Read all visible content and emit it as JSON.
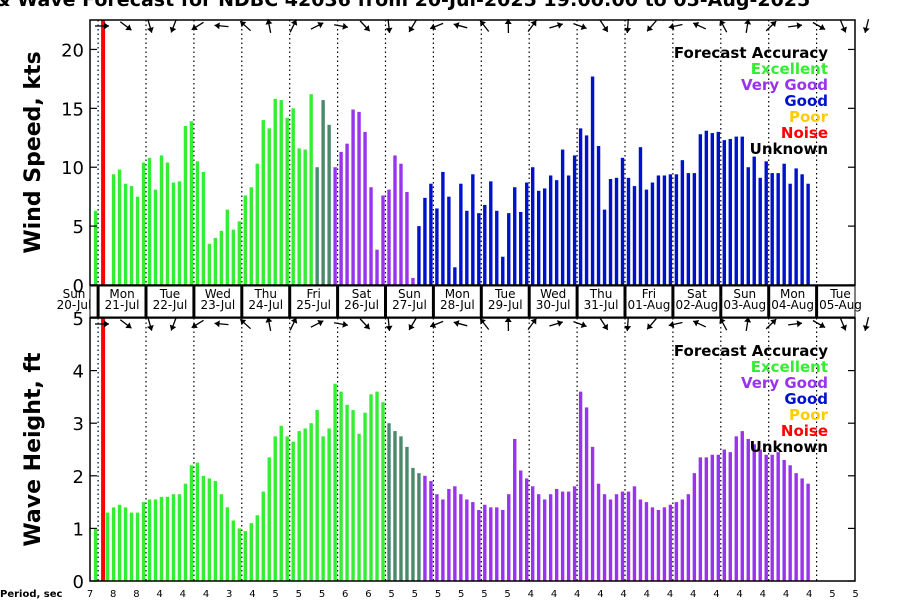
{
  "title": "& Wave Forecast for NDBC 42036 from 20-Jul-2025 19:00:00 to 05-Aug-2025",
  "colors": {
    "excellent": "#33ee33",
    "very_good": "#9933ee",
    "good": "#0011cc",
    "poor": "#ffcc00",
    "noise": "#ff0000",
    "unknown": "#000000",
    "transition": "#4a8a6a"
  },
  "legend": {
    "title": "Forecast Accuracy",
    "items": [
      {
        "label": "Excellent",
        "color": "#33ee33"
      },
      {
        "label": "Very Good",
        "color": "#9933ee"
      },
      {
        "label": "Good",
        "color": "#0011cc"
      },
      {
        "label": "Poor",
        "color": "#ffcc00"
      },
      {
        "label": "Noise",
        "color": "#ff0000"
      },
      {
        "label": "Unknown",
        "color": "#000000"
      }
    ]
  },
  "days": [
    {
      "dow": "Sun",
      "date": "20-Jul"
    },
    {
      "dow": "Mon",
      "date": "21-Jul"
    },
    {
      "dow": "Tue",
      "date": "22-Jul"
    },
    {
      "dow": "Wed",
      "date": "23-Jul"
    },
    {
      "dow": "Thu",
      "date": "24-Jul"
    },
    {
      "dow": "Fri",
      "date": "25-Jul"
    },
    {
      "dow": "Sat",
      "date": "26-Jul"
    },
    {
      "dow": "Sun",
      "date": "27-Jul"
    },
    {
      "dow": "Mon",
      "date": "28-Jul"
    },
    {
      "dow": "Tue",
      "date": "29-Jul"
    },
    {
      "dow": "Wed",
      "date": "30-Jul"
    },
    {
      "dow": "Thu",
      "date": "31-Jul"
    },
    {
      "dow": "Fri",
      "date": "01-Aug"
    },
    {
      "dow": "Sat",
      "date": "02-Aug"
    },
    {
      "dow": "Sun",
      "date": "03-Aug"
    },
    {
      "dow": "Mon",
      "date": "04-Aug"
    },
    {
      "dow": "Tue",
      "date": "05-Aug"
    }
  ],
  "period_label": "Period, sec",
  "periods": [
    7,
    8,
    8,
    4,
    4,
    4,
    3,
    4,
    5,
    5,
    5,
    6,
    6,
    5,
    5,
    5,
    5,
    5,
    5,
    4,
    4,
    4,
    4,
    4,
    4,
    4,
    4,
    4,
    4,
    4,
    4,
    4,
    5,
    5
  ],
  "chart_data": [
    {
      "type": "bar",
      "title": "& Wave Forecast for NDBC 42036 from 20-Jul-2025 19:00:00 to 05-Aug-2025",
      "ylabel": "Wind Speed, kts",
      "ylim": [
        0,
        22.5
      ],
      "yticks": [
        0,
        5,
        10,
        15,
        20
      ],
      "noise_line_at": "21-Jul 02:00",
      "x_start": "20-Jul 19:00",
      "step_hours": 3,
      "values": [
        6.0,
        6.3,
        0,
        0,
        9.4,
        9.8,
        8.6,
        8.4,
        7.5,
        10.4,
        10.8,
        8.1,
        11.0,
        10.4,
        8.7,
        8.8,
        13.5,
        13.9,
        10.5,
        9.6,
        3.5,
        4.0,
        4.6,
        6.4,
        4.7,
        5.4,
        7.6,
        8.3,
        10.3,
        14.0,
        13.3,
        15.8,
        15.7,
        14.2,
        15.0,
        11.6,
        11.5,
        16.2,
        10.0,
        15.7,
        13.6,
        10.0,
        11.3,
        12.0,
        14.9,
        14.7,
        13.0,
        8.3,
        3.0,
        7.6,
        8.1,
        11.0,
        10.3,
        7.9,
        0.6,
        5.0,
        7.4,
        8.6,
        6.5,
        9.6,
        7.5,
        1.5,
        8.6,
        6.3,
        9.4,
        6.1,
        6.8,
        8.8,
        6.3,
        2.4,
        6.1,
        8.3,
        6.2,
        8.7,
        10.0,
        8.0,
        8.2,
        9.3,
        8.9,
        11.5,
        9.3,
        11.0,
        13.3,
        12.7,
        17.7,
        11.8,
        6.4,
        9.0,
        9.1,
        10.8,
        9.1,
        8.4,
        11.7,
        8.1,
        8.7,
        9.3,
        9.3,
        9.4,
        9.4,
        10.6,
        9.5,
        9.5,
        12.8,
        13.1,
        12.9,
        13.0,
        12.3,
        12.4,
        12.6,
        12.6,
        10.0,
        10.9,
        9.1,
        10.5,
        9.5,
        9.5,
        10.3,
        8.6,
        9.9,
        9.4,
        8.6
      ],
      "colors": [
        "excellent",
        "excellent",
        "excellent",
        "excellent",
        "excellent",
        "excellent",
        "excellent",
        "excellent",
        "excellent",
        "excellent",
        "excellent",
        "excellent",
        "excellent",
        "excellent",
        "excellent",
        "excellent",
        "excellent",
        "excellent",
        "excellent",
        "excellent",
        "excellent",
        "excellent",
        "excellent",
        "excellent",
        "excellent",
        "excellent",
        "excellent",
        "excellent",
        "excellent",
        "excellent",
        "excellent",
        "excellent",
        "excellent",
        "excellent",
        "excellent",
        "excellent",
        "excellent",
        "excellent",
        "transition",
        "transition",
        "transition",
        "very_good",
        "very_good",
        "very_good",
        "very_good",
        "very_good",
        "very_good",
        "very_good",
        "very_good",
        "very_good",
        "very_good",
        "very_good",
        "very_good",
        "very_good",
        "very_good",
        "good",
        "good",
        "good",
        "good",
        "good",
        "good",
        "good",
        "good",
        "good",
        "good",
        "good",
        "good",
        "good",
        "good",
        "good",
        "good",
        "good",
        "good",
        "good",
        "good",
        "good",
        "good",
        "good",
        "good",
        "good",
        "good",
        "good",
        "good",
        "good",
        "good",
        "good",
        "good",
        "good",
        "good",
        "good",
        "good",
        "good",
        "good",
        "good",
        "good",
        "good",
        "good",
        "good",
        "good",
        "good",
        "good",
        "good",
        "good",
        "good",
        "good",
        "good",
        "good",
        "good",
        "good",
        "good",
        "good",
        "good",
        "good",
        "good",
        "good",
        "good",
        "good",
        "good",
        "good",
        "good",
        "good",
        "good"
      ]
    },
    {
      "type": "bar",
      "ylabel": "Wave Height, ft",
      "ylim": [
        0,
        5
      ],
      "yticks": [
        0,
        1,
        2,
        3,
        4,
        5
      ],
      "noise_line_at": "21-Jul 02:00",
      "x_start": "20-Jul 19:00",
      "step_hours": 3,
      "values": [
        1.05,
        1.0,
        0,
        1.3,
        1.4,
        1.45,
        1.4,
        1.3,
        1.3,
        1.5,
        1.55,
        1.55,
        1.6,
        1.6,
        1.65,
        1.65,
        1.85,
        2.2,
        2.25,
        2.0,
        1.95,
        1.9,
        1.65,
        1.4,
        1.15,
        1.0,
        0.95,
        1.1,
        1.25,
        1.7,
        2.35,
        2.75,
        2.95,
        2.75,
        2.65,
        2.85,
        2.9,
        3.0,
        3.25,
        2.75,
        2.9,
        3.75,
        3.6,
        3.35,
        3.25,
        2.8,
        3.2,
        3.55,
        3.6,
        3.4,
        3.0,
        2.85,
        2.75,
        2.55,
        2.15,
        2.05,
        2.0,
        1.9,
        1.65,
        1.55,
        1.75,
        1.8,
        1.65,
        1.55,
        1.5,
        1.35,
        1.45,
        1.4,
        1.4,
        1.35,
        1.65,
        2.7,
        2.1,
        1.95,
        1.8,
        1.65,
        1.55,
        1.65,
        1.75,
        1.7,
        1.7,
        1.8,
        3.6,
        3.3,
        2.55,
        1.85,
        1.65,
        1.55,
        1.65,
        1.7,
        1.7,
        1.8,
        1.55,
        1.5,
        1.4,
        1.35,
        1.4,
        1.45,
        1.5,
        1.55,
        1.65,
        2.05,
        2.35,
        2.35,
        2.4,
        2.4,
        2.5,
        2.45,
        2.75,
        2.85,
        2.7,
        2.6,
        2.5,
        2.4,
        2.4,
        2.45,
        2.3,
        2.2,
        2.05,
        1.95,
        1.85
      ],
      "colors": [
        "excellent",
        "excellent",
        "excellent",
        "excellent",
        "excellent",
        "excellent",
        "excellent",
        "excellent",
        "excellent",
        "excellent",
        "excellent",
        "excellent",
        "excellent",
        "excellent",
        "excellent",
        "excellent",
        "excellent",
        "excellent",
        "excellent",
        "excellent",
        "excellent",
        "excellent",
        "excellent",
        "excellent",
        "excellent",
        "excellent",
        "excellent",
        "excellent",
        "excellent",
        "excellent",
        "excellent",
        "excellent",
        "excellent",
        "excellent",
        "excellent",
        "excellent",
        "excellent",
        "excellent",
        "excellent",
        "excellent",
        "excellent",
        "excellent",
        "excellent",
        "excellent",
        "excellent",
        "excellent",
        "excellent",
        "excellent",
        "excellent",
        "excellent",
        "transition",
        "transition",
        "transition",
        "transition",
        "transition",
        "transition",
        "very_good",
        "very_good",
        "very_good",
        "very_good",
        "very_good",
        "very_good",
        "very_good",
        "very_good",
        "very_good",
        "very_good",
        "very_good",
        "very_good",
        "very_good",
        "very_good",
        "very_good",
        "very_good",
        "very_good",
        "very_good",
        "very_good",
        "very_good",
        "very_good",
        "very_good",
        "very_good",
        "very_good",
        "very_good",
        "very_good",
        "very_good",
        "very_good",
        "very_good",
        "very_good",
        "very_good",
        "very_good",
        "very_good",
        "very_good",
        "very_good",
        "very_good",
        "very_good",
        "very_good",
        "very_good",
        "very_good",
        "very_good",
        "very_good",
        "very_good",
        "very_good",
        "very_good",
        "very_good",
        "very_good",
        "very_good",
        "very_good",
        "very_good",
        "very_good",
        "very_good",
        "very_good",
        "very_good",
        "very_good",
        "very_good",
        "very_good",
        "very_good",
        "very_good",
        "very_good",
        "very_good",
        "very_good",
        "very_good",
        "very_good",
        "very_good"
      ]
    }
  ]
}
